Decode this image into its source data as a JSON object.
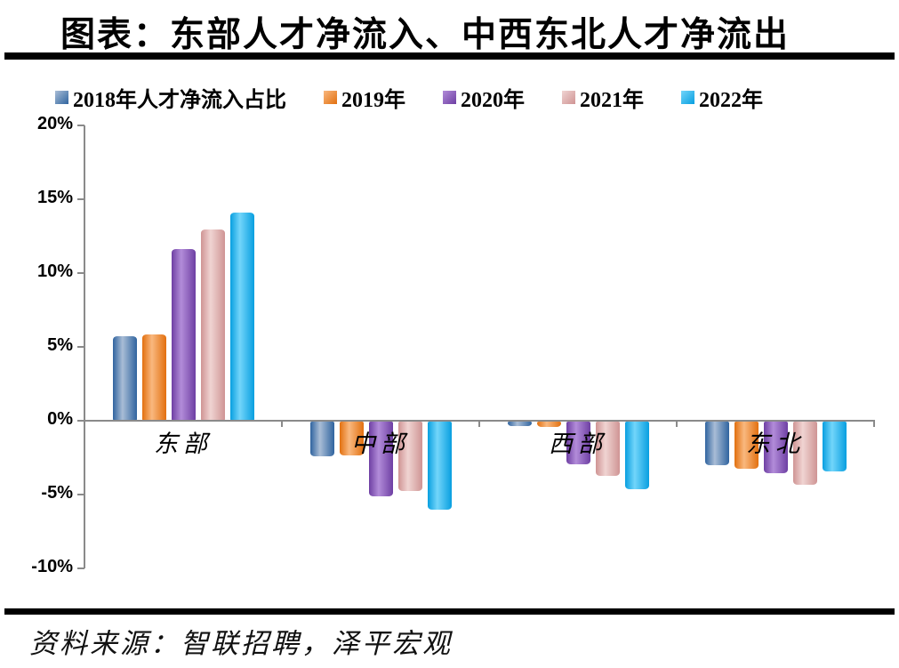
{
  "title": "图表：东部人才净流入、中西东北人才净流出",
  "source": "资料来源：智联招聘，泽平宏观",
  "chart_data": {
    "type": "bar",
    "title": "图表：东部人才净流入、中西东北人才净流出",
    "categories": [
      "东部",
      "中部",
      "西部",
      "东北"
    ],
    "series": [
      {
        "name": "2018年人才净流入占比",
        "color_edge": "#30649f",
        "color_mid": "#a9bdd6",
        "values": [
          5.7,
          -2.4,
          -0.3,
          -3.0
        ]
      },
      {
        "name": "2019年",
        "color_edge": "#e2700f",
        "color_mid": "#f9b87f",
        "values": [
          5.8,
          -2.3,
          -0.4,
          -3.2
        ]
      },
      {
        "name": "2020年",
        "color_edge": "#6e3fa3",
        "color_mid": "#b28cd9",
        "values": [
          11.6,
          -5.1,
          -2.9,
          -3.5
        ]
      },
      {
        "name": "2021年",
        "color_edge": "#cf9494",
        "color_mid": "#f0d4d2",
        "values": [
          12.9,
          -4.7,
          -3.7,
          -4.3
        ]
      },
      {
        "name": "2022年",
        "color_edge": "#089fe0",
        "color_mid": "#72d5fa",
        "values": [
          14.1,
          -6.0,
          -4.6,
          -3.4
        ]
      }
    ],
    "y_ticks": [
      {
        "v": 20,
        "label": "20%"
      },
      {
        "v": 15,
        "label": "15%"
      },
      {
        "v": 10,
        "label": "10%"
      },
      {
        "v": 5,
        "label": "5%"
      },
      {
        "v": 0,
        "label": "0%"
      },
      {
        "v": -5,
        "label": "-5%"
      },
      {
        "v": -10,
        "label": "-10%"
      }
    ],
    "ylim": [
      -10,
      20
    ],
    "unit": "%",
    "legend_position": "top",
    "grid": false,
    "axis_color": "#8a8a8a"
  }
}
